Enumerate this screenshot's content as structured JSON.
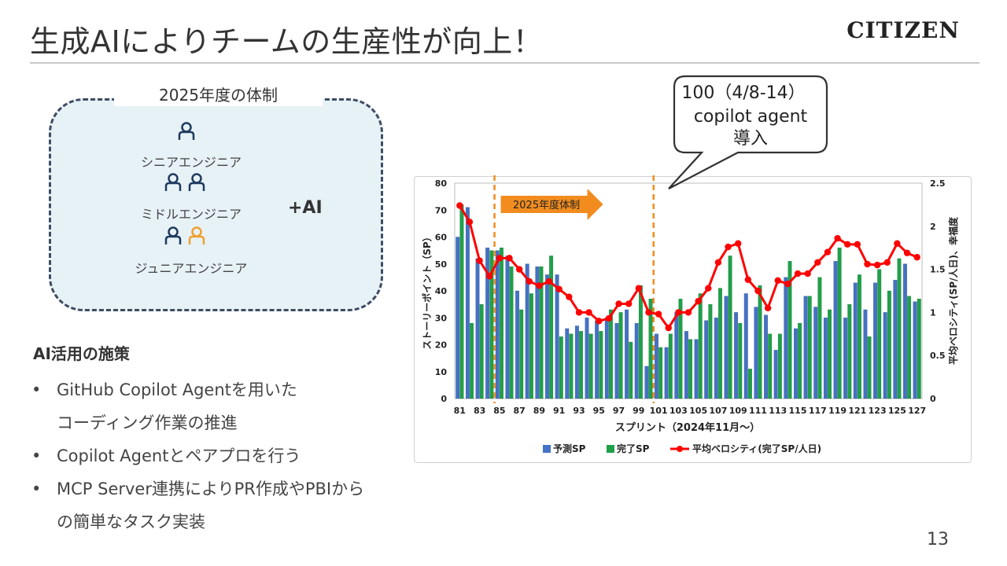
{
  "title": "生成AIによりチームの生産性が向上！",
  "logo": "CITIZEN",
  "team": {
    "title": "2025年度の体制",
    "roles": [
      {
        "label": "シニアエンジニア",
        "count": 1
      },
      {
        "label": "ミドルエンジニア",
        "count": 2
      },
      {
        "label": "ジュニアエンジニア",
        "count": 2
      }
    ],
    "plus_ai": "+AI",
    "icon": "person-icon",
    "colors": {
      "person": "#1f3a5f",
      "person_highlight": "#f0a030",
      "box_bg": "#e7f2f7",
      "box_border": "#3f4c63"
    }
  },
  "measures": {
    "title": "AI活用の施策",
    "bullets": [
      {
        "line1": "GitHub Copilot Agentを用いた",
        "line2": "コーディング作業の推進"
      },
      {
        "line1": "Copilot Agentとペアプロを行う",
        "line2": ""
      },
      {
        "line1": "MCP Server連携によりPR作成やPBIから",
        "line2": "の簡単なタスク実装"
      }
    ]
  },
  "callout": {
    "line1": "100（4/8-14）",
    "line2": "copilot agent",
    "line3": "導入"
  },
  "page_number": "13",
  "chart_data": {
    "type": "bar",
    "x": [
      81,
      82,
      83,
      84,
      85,
      86,
      87,
      88,
      89,
      90,
      91,
      92,
      93,
      94,
      95,
      96,
      97,
      98,
      99,
      100,
      101,
      102,
      103,
      104,
      105,
      106,
      107,
      108,
      109,
      110,
      111,
      112,
      113,
      114,
      115,
      116,
      117,
      118,
      119,
      120,
      121,
      122,
      123,
      124,
      125,
      126,
      127
    ],
    "x_tick_labels": [
      "81",
      "83",
      "85",
      "87",
      "89",
      "91",
      "93",
      "95",
      "97",
      "99",
      "101",
      "103",
      "105",
      "107",
      "109",
      "111",
      "113",
      "115",
      "117",
      "119",
      "121",
      "123",
      "125",
      "127"
    ],
    "xlabel": "スプリント（2024年11月～）",
    "ylabel_left": "ストーリーポイント（SP）",
    "ylabel_right": "平均ベロシティ(SP/人日)、幸福度",
    "ylim_left": [
      0,
      80
    ],
    "yticks_left": [
      0,
      10,
      20,
      30,
      40,
      50,
      60,
      70,
      80
    ],
    "ylim_right": [
      0,
      2.5
    ],
    "yticks_right": [
      "0",
      "0.5",
      "1",
      "1.5",
      "2",
      "2.5"
    ],
    "series": [
      {
        "name": "予測SP",
        "type": "bar",
        "axis": "left",
        "color": "#4472c4",
        "values": [
          60,
          71,
          52,
          56,
          55,
          53,
          40,
          50,
          49,
          46,
          46,
          26,
          27,
          30,
          29,
          30,
          28,
          33,
          28,
          12,
          24,
          19,
          32,
          25,
          22,
          29,
          30,
          38,
          32,
          39,
          34,
          31,
          18,
          45,
          26,
          38,
          34,
          30,
          51,
          30,
          43,
          33,
          43,
          32,
          44,
          50,
          36
        ]
      },
      {
        "name": "完了SP",
        "type": "bar",
        "axis": "left",
        "color": "#1fa04a",
        "values": [
          72,
          28,
          35,
          55,
          56,
          49,
          33,
          39,
          49,
          53,
          23,
          24,
          25,
          24,
          25,
          33,
          32,
          21,
          42,
          37,
          19,
          24,
          37,
          22,
          39,
          35,
          41,
          53,
          28,
          11,
          42,
          24,
          24,
          51,
          28,
          38,
          45,
          33,
          56,
          35,
          46,
          23,
          48,
          40,
          52,
          38,
          37
        ]
      },
      {
        "name": "平均ベロシティ(完了SP/人日)",
        "type": "line",
        "axis": "right",
        "color": "#ff0000",
        "values": [
          2.24,
          2.05,
          1.6,
          1.42,
          1.63,
          1.63,
          1.5,
          1.36,
          1.31,
          1.36,
          1.27,
          1.18,
          1.0,
          1.0,
          0.9,
          0.93,
          1.1,
          1.1,
          1.28,
          1.0,
          0.98,
          0.82,
          1.0,
          1.0,
          1.13,
          1.28,
          1.58,
          1.76,
          1.8,
          1.38,
          1.25,
          1.05,
          1.37,
          1.33,
          1.45,
          1.45,
          1.58,
          1.7,
          1.86,
          1.79,
          1.79,
          1.56,
          1.55,
          1.58,
          1.8,
          1.69,
          1.64
        ]
      }
    ],
    "vlines": [
      84.5,
      100.5
    ],
    "annotation": {
      "label": "2025年度体制",
      "color": "#f28c1e"
    }
  }
}
